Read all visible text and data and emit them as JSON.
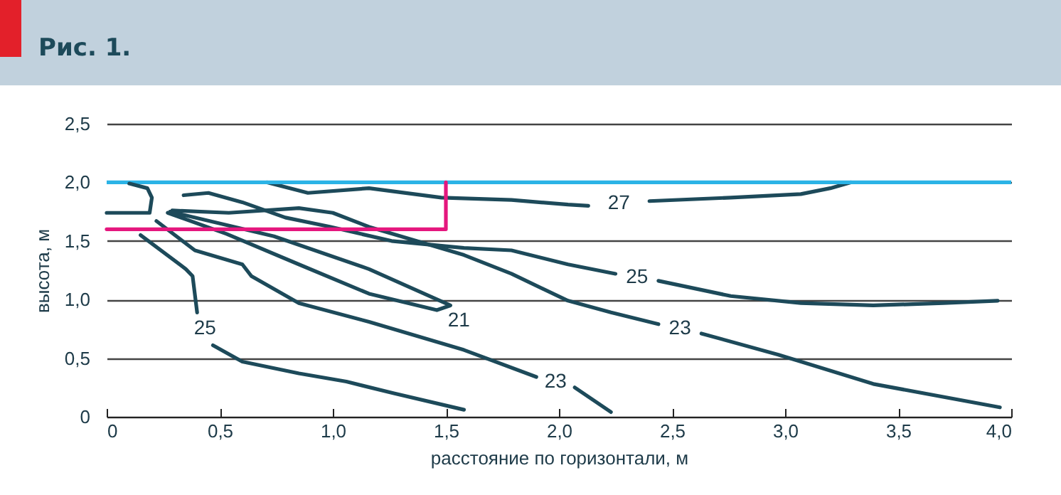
{
  "chart_data": {
    "type": "line",
    "title": "Рис. 1.",
    "xlabel": "расстояние по горизонтали, м",
    "ylabel": "высота, м",
    "xlim": [
      0,
      4.0
    ],
    "ylim": [
      0,
      2.5
    ],
    "xticks": [
      0,
      {
        "value": 0.5,
        "label": "0,5"
      },
      {
        "value": 1,
        "label": "1,0"
      },
      {
        "value": 1.5,
        "label": "1,5"
      },
      {
        "value": 2,
        "label": "2,0"
      },
      {
        "value": 2.5,
        "label": "2,5"
      },
      {
        "value": 3,
        "label": "3,0"
      },
      {
        "value": 3.5,
        "label": "3,5"
      },
      {
        "value": 4,
        "label": "4,0"
      }
    ],
    "yticks": [
      0,
      {
        "value": 0.5,
        "label": "0,5"
      },
      {
        "value": 1,
        "label": "1,0"
      },
      {
        "value": 1.5,
        "label": "1,5"
      },
      {
        "value": 2,
        "label": "2,0"
      },
      {
        "value": 2.5,
        "label": "2,5"
      }
    ],
    "grid": "y",
    "line_style": "solid",
    "marker": "none",
    "series": [
      {
        "name": "27",
        "color": "#1d4a5a",
        "x": [
          0.71,
          0.89,
          1.16,
          1.48,
          1.79,
          2.04,
          2.13,
          2.27,
          2.4,
          2.76,
          3.07,
          3.2,
          3.29
        ],
        "values": [
          2.0,
          1.91,
          1.95,
          1.87,
          1.85,
          1.81,
          1.8,
          null,
          1.84,
          1.87,
          1.9,
          1.95,
          2.0
        ]
      },
      {
        "color": "#1d4a5a",
        "x": [
          0,
          0.19,
          0.2,
          0.18,
          0.1
        ],
        "values": [
          1.74,
          1.74,
          1.87,
          1.95,
          1.99
        ]
      },
      {
        "name": "25",
        "color": "#1d4a5a",
        "x": [
          0.34,
          0.45,
          0.6,
          0.79,
          0.99,
          1.26,
          1.58,
          1.79,
          2.04,
          2.25,
          2.38,
          2.44,
          2.76,
          3.07,
          3.39,
          3.7,
          3.94
        ],
        "values": [
          1.89,
          1.91,
          1.83,
          1.7,
          1.62,
          1.5,
          1.44,
          1.42,
          1.3,
          1.22,
          null,
          1.16,
          1.03,
          0.97,
          0.95,
          0.97,
          0.99
        ]
      },
      {
        "name": "23",
        "color": "#1d4a5a",
        "x": [
          0.29,
          0.54,
          0.85,
          1.0,
          1.16,
          1.37,
          1.58,
          1.79,
          2.04,
          2.23,
          2.44,
          2.53,
          2.63,
          2.97,
          3.39,
          3.95
        ],
        "values": [
          1.76,
          1.74,
          1.78,
          1.74,
          1.62,
          1.5,
          1.38,
          1.22,
          0.99,
          0.89,
          0.79,
          null,
          0.71,
          0.53,
          0.28,
          0.08
        ]
      },
      {
        "name": "21",
        "color": "#1d4a5a",
        "x": [
          0.28,
          0.74,
          1.16,
          1.52,
          1.46,
          1.16,
          0.85,
          0.53,
          0.27
        ],
        "values": [
          1.75,
          1.54,
          1.26,
          0.95,
          0.91,
          1.05,
          1.3,
          1.56,
          1.74
        ]
      },
      {
        "name": "23",
        "color": "#1d4a5a",
        "x": [
          0.22,
          0.39,
          0.6,
          0.64,
          0.85,
          1.16,
          1.58,
          1.9,
          1.98,
          2.07,
          2.23
        ],
        "values": [
          1.67,
          1.42,
          1.3,
          1.2,
          0.97,
          0.81,
          0.57,
          0.34,
          null,
          0.25,
          0.04
        ]
      },
      {
        "name": "25",
        "color": "#1d4a5a",
        "x": [
          0.15,
          0.35,
          0.38,
          0.4,
          0.44,
          0.47,
          0.6,
          0.85,
          1.06,
          1.27,
          1.58
        ],
        "values": [
          1.55,
          1.26,
          1.2,
          0.89,
          null,
          0.61,
          0.47,
          0.37,
          0.3,
          0.2,
          0.06
        ]
      },
      {
        "color": "#e5177e",
        "x": [
          0,
          1.5,
          1.5
        ],
        "values": [
          1.6,
          1.6,
          2.0
        ]
      }
    ],
    "ref_lines": [
      {
        "axis": "y",
        "value": 2.0,
        "color": "#2bb3e6"
      }
    ]
  }
}
